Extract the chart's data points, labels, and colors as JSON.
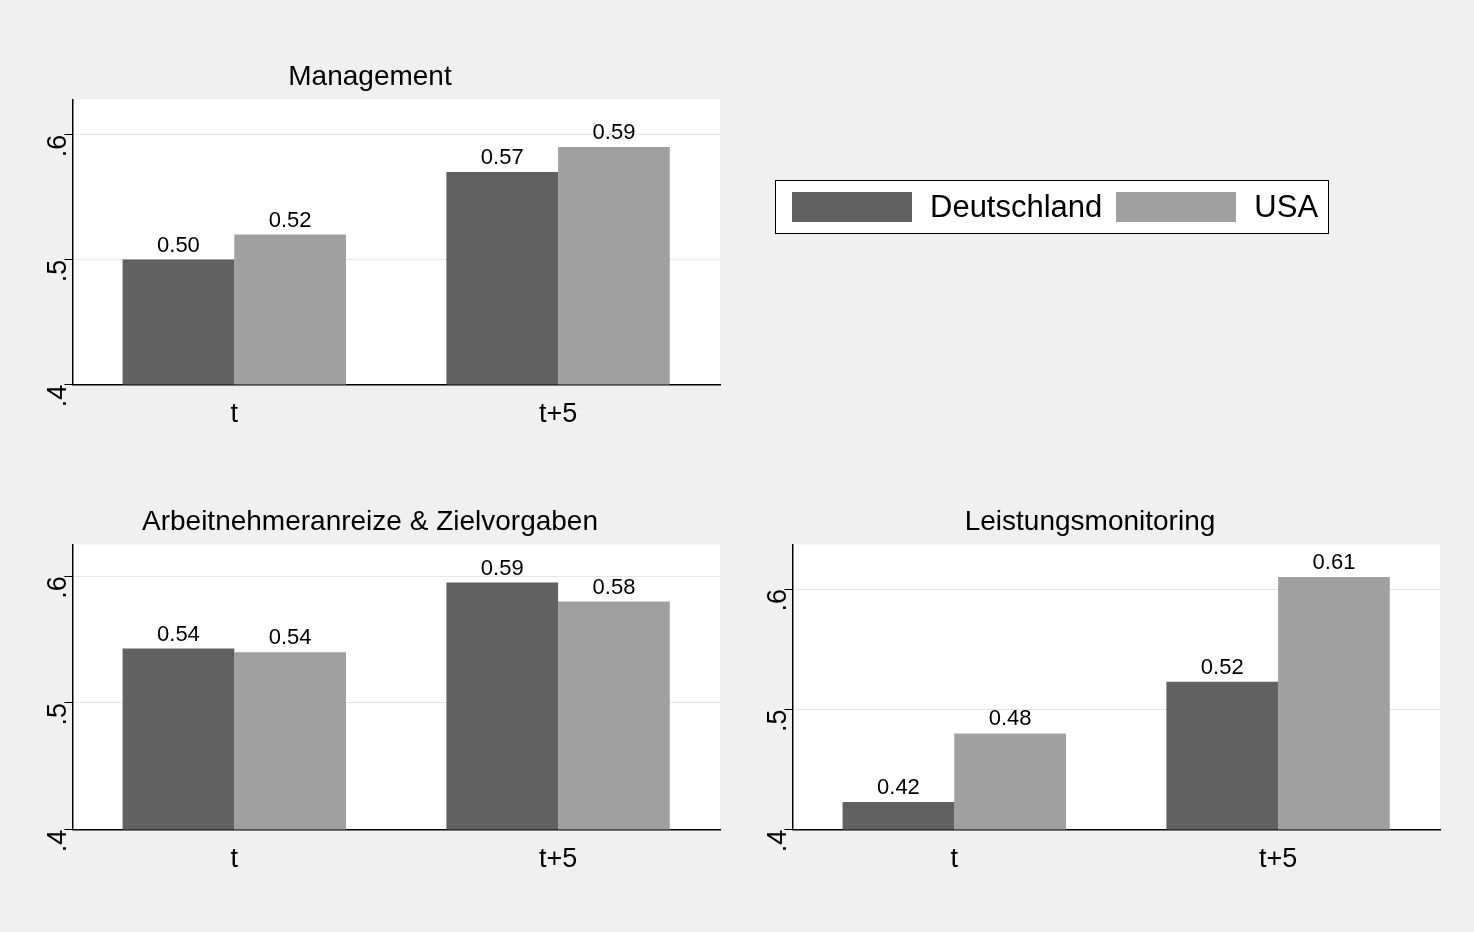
{
  "chart_data": [
    {
      "type": "bar",
      "title": "Management",
      "categories": [
        "t",
        "t+5"
      ],
      "series": [
        {
          "name": "Deutschland",
          "color": "#616161",
          "values": [
            0.5,
            0.57
          ],
          "value_labels": [
            "0.50",
            "0.57"
          ]
        },
        {
          "name": "USA",
          "color": "#a0a0a0",
          "values": [
            0.52,
            0.59
          ],
          "value_labels": [
            "0.52",
            "0.59"
          ]
        }
      ],
      "ylim": [
        0.4,
        0.628
      ],
      "yticks": [
        {
          "value": 0.4,
          "label": ".4"
        },
        {
          "value": 0.5,
          "label": ".5"
        },
        {
          "value": 0.6,
          "label": ".6"
        }
      ],
      "grid": "y",
      "legend": "right"
    },
    {
      "type": "bar",
      "title": "Arbeitnehmeranreize & Zielvorgaben",
      "categories": [
        "t",
        "t+5"
      ],
      "series": [
        {
          "color": "#616161",
          "values": [
            0.543,
            0.595
          ],
          "value_labels": [
            "0.54",
            "0.59"
          ]
        },
        {
          "color": "#a0a0a0",
          "values": [
            0.54,
            0.58
          ],
          "value_labels": [
            "0.54",
            "0.58"
          ]
        }
      ],
      "ylim": [
        0.4,
        0.625
      ],
      "yticks": [
        {
          "value": 0.4,
          "label": ".4"
        },
        {
          "value": 0.5,
          "label": ".5"
        },
        {
          "value": 0.6,
          "label": ".6"
        }
      ],
      "grid": "y"
    },
    {
      "type": "bar",
      "title": "Leistungsmonitoring",
      "categories": [
        "t",
        "t+5"
      ],
      "series": [
        {
          "color": "#616161",
          "values": [
            0.423,
            0.523
          ],
          "value_labels": [
            "0.42",
            "0.52"
          ]
        },
        {
          "color": "#a0a0a0",
          "values": [
            0.48,
            0.61
          ],
          "value_labels": [
            "0.48",
            "0.61"
          ]
        }
      ],
      "ylim": [
        0.4,
        0.637
      ],
      "yticks": [
        {
          "value": 0.4,
          "label": ".4"
        },
        {
          "value": 0.5,
          "label": ".5"
        },
        {
          "value": 0.6,
          "label": ".6"
        }
      ],
      "grid": "y"
    }
  ]
}
